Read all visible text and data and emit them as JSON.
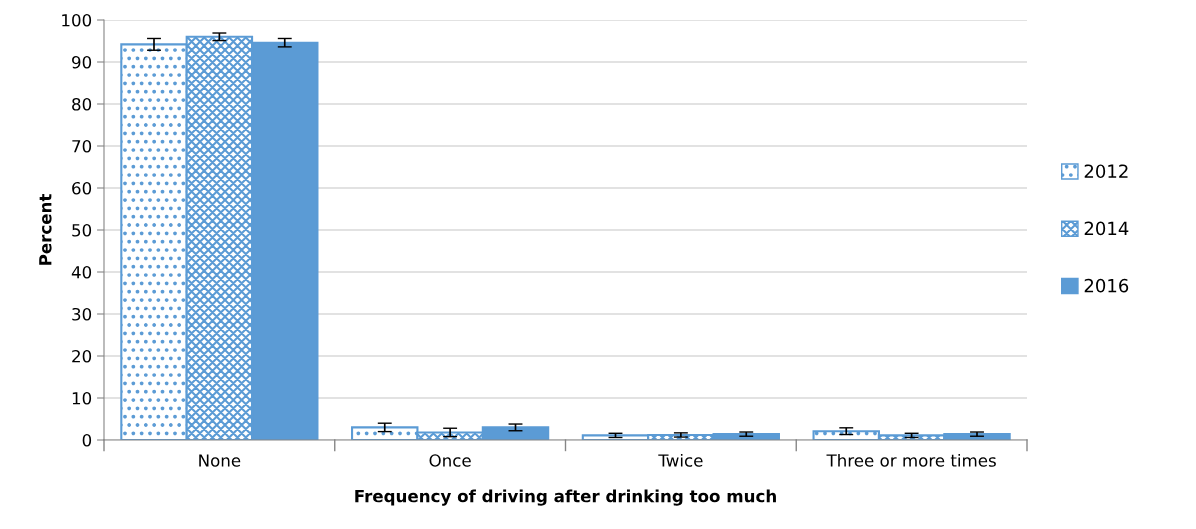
{
  "chart_data": {
    "type": "bar",
    "xlabel": "Frequency of driving after drinking too much",
    "ylabel": "Percent",
    "categories": [
      "None",
      "Once",
      "Twice",
      "Three or more times"
    ],
    "series": [
      {
        "name": "2012",
        "color": "#5b9bd5",
        "values": [
          94.2,
          3.0,
          1.1,
          2.1
        ],
        "errors": [
          1.4,
          1.0,
          0.5,
          0.8
        ]
      },
      {
        "name": "2014",
        "color": "#5b9bd5",
        "values": [
          96.0,
          1.8,
          1.2,
          1.1
        ],
        "errors": [
          0.9,
          1.0,
          0.5,
          0.5
        ]
      },
      {
        "name": "2016",
        "color": "#5b9bd5",
        "values": [
          94.6,
          3.0,
          1.4,
          1.4
        ],
        "errors": [
          1.0,
          0.8,
          0.5,
          0.5
        ]
      }
    ],
    "ylim": [
      0,
      100
    ],
    "yticks": [
      0,
      10,
      20,
      30,
      40,
      50,
      60,
      70,
      80,
      90,
      100
    ],
    "grid": "y",
    "legend": "right"
  }
}
